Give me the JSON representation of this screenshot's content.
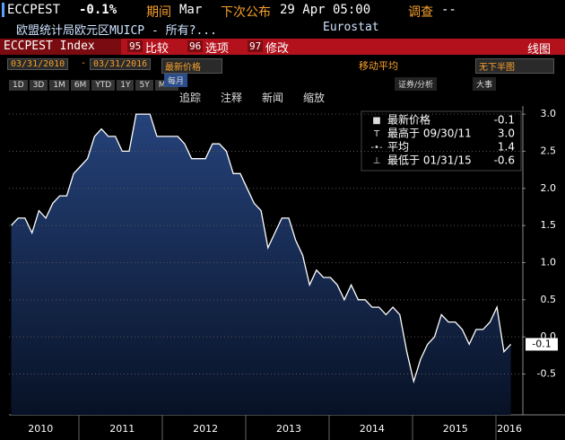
{
  "header": {
    "ticker": "ECCPEST",
    "change": "-0.1%",
    "period_label": "期间",
    "period": "Mar",
    "next_label": "下次公布",
    "next": "29 Apr 05:00",
    "survey_label": "调查",
    "survey": "--",
    "description": "欧盟统计局欧元区MUICP - 所有?...",
    "source": "Eurostat"
  },
  "menu": {
    "security": "ECCPEST Index",
    "items": [
      {
        "num": "95",
        "label": "比较"
      },
      {
        "num": "96",
        "label": "选项"
      },
      {
        "num": "97",
        "label": "修改"
      }
    ],
    "right": "线图"
  },
  "controls": {
    "start": "03/31/2010",
    "end": "03/31/2016",
    "field": "最新价格",
    "moving_avg": "移动平均",
    "lower": "无下半图"
  },
  "ranges": [
    "1D",
    "3D",
    "1M",
    "6M",
    "YTD",
    "1Y",
    "5Y",
    "Max"
  ],
  "frequency": "每月",
  "right_buttons": [
    "证券/分析",
    "大事"
  ],
  "tools": [
    "追踪",
    "注释",
    "新闻",
    "缩放"
  ],
  "chart_data": {
    "type": "line",
    "color": "#ffffff",
    "x": [
      2010.167,
      2010.25,
      2010.333,
      2010.417,
      2010.5,
      2010.583,
      2010.667,
      2010.75,
      2010.833,
      2010.917,
      2011,
      2011.083,
      2011.167,
      2011.25,
      2011.333,
      2011.417,
      2011.5,
      2011.583,
      2011.667,
      2011.75,
      2011.833,
      2011.917,
      2012,
      2012.083,
      2012.167,
      2012.25,
      2012.333,
      2012.417,
      2012.5,
      2012.583,
      2012.667,
      2012.75,
      2012.833,
      2012.917,
      2013,
      2013.083,
      2013.167,
      2013.25,
      2013.333,
      2013.417,
      2013.5,
      2013.583,
      2013.667,
      2013.75,
      2013.833,
      2013.917,
      2014,
      2014.083,
      2014.167,
      2014.25,
      2014.333,
      2014.417,
      2014.5,
      2014.583,
      2014.667,
      2014.75,
      2014.833,
      2014.917,
      2015,
      2015.083,
      2015.167,
      2015.25,
      2015.333,
      2015.417,
      2015.5,
      2015.583,
      2015.667,
      2015.75,
      2015.833,
      2015.917,
      2016,
      2016.083,
      2016.167
    ],
    "series": [
      {
        "name": "最新价格",
        "color": "#ffffff",
        "values": [
          1.5,
          1.6,
          1.6,
          1.4,
          1.7,
          1.6,
          1.8,
          1.9,
          1.9,
          2.2,
          2.3,
          2.4,
          2.7,
          2.8,
          2.7,
          2.7,
          2.5,
          2.5,
          3.0,
          3.0,
          3.0,
          2.7,
          2.7,
          2.7,
          2.7,
          2.6,
          2.4,
          2.4,
          2.4,
          2.6,
          2.6,
          2.5,
          2.2,
          2.2,
          2.0,
          1.8,
          1.7,
          1.2,
          1.4,
          1.6,
          1.6,
          1.3,
          1.1,
          0.7,
          0.9,
          0.8,
          0.8,
          0.7,
          0.5,
          0.7,
          0.5,
          0.5,
          0.4,
          0.4,
          0.3,
          0.4,
          0.3,
          -0.2,
          -0.6,
          -0.3,
          -0.1,
          0.0,
          0.3,
          0.2,
          0.2,
          0.1,
          -0.1,
          0.1,
          0.1,
          0.2,
          0.4,
          -0.2,
          -0.1
        ]
      }
    ],
    "last_label": "-0.1",
    "stats": [
      {
        "label": "最新价格",
        "value": "-0.1"
      },
      {
        "label": "最高于 09/30/11",
        "value": "3.0"
      },
      {
        "label": "平均",
        "value": "1.4"
      },
      {
        "label": "最低于 01/31/15",
        "value": "-0.6"
      }
    ],
    "xlim": [
      2010.14,
      2016.3
    ],
    "xticks": [
      {
        "value": 2010.52,
        "label": "2010"
      },
      {
        "value": 2011.5,
        "label": "2011"
      },
      {
        "value": 2012.5,
        "label": "2012"
      },
      {
        "value": 2013.5,
        "label": "2013"
      },
      {
        "value": 2014.5,
        "label": "2014"
      },
      {
        "value": 2015.5,
        "label": "2015"
      },
      {
        "value": 2016.15,
        "label": "2016"
      }
    ],
    "ylim": [
      -1.05,
      3.11
    ],
    "yticks": [
      {
        "value": 3,
        "label": "3.0"
      },
      2.5,
      {
        "value": 2,
        "label": "2.0"
      },
      1.5,
      {
        "value": 1,
        "label": "1.0"
      },
      0.5,
      {
        "value": 0,
        "label": "0.0"
      },
      -0.5
    ],
    "grid": true
  }
}
